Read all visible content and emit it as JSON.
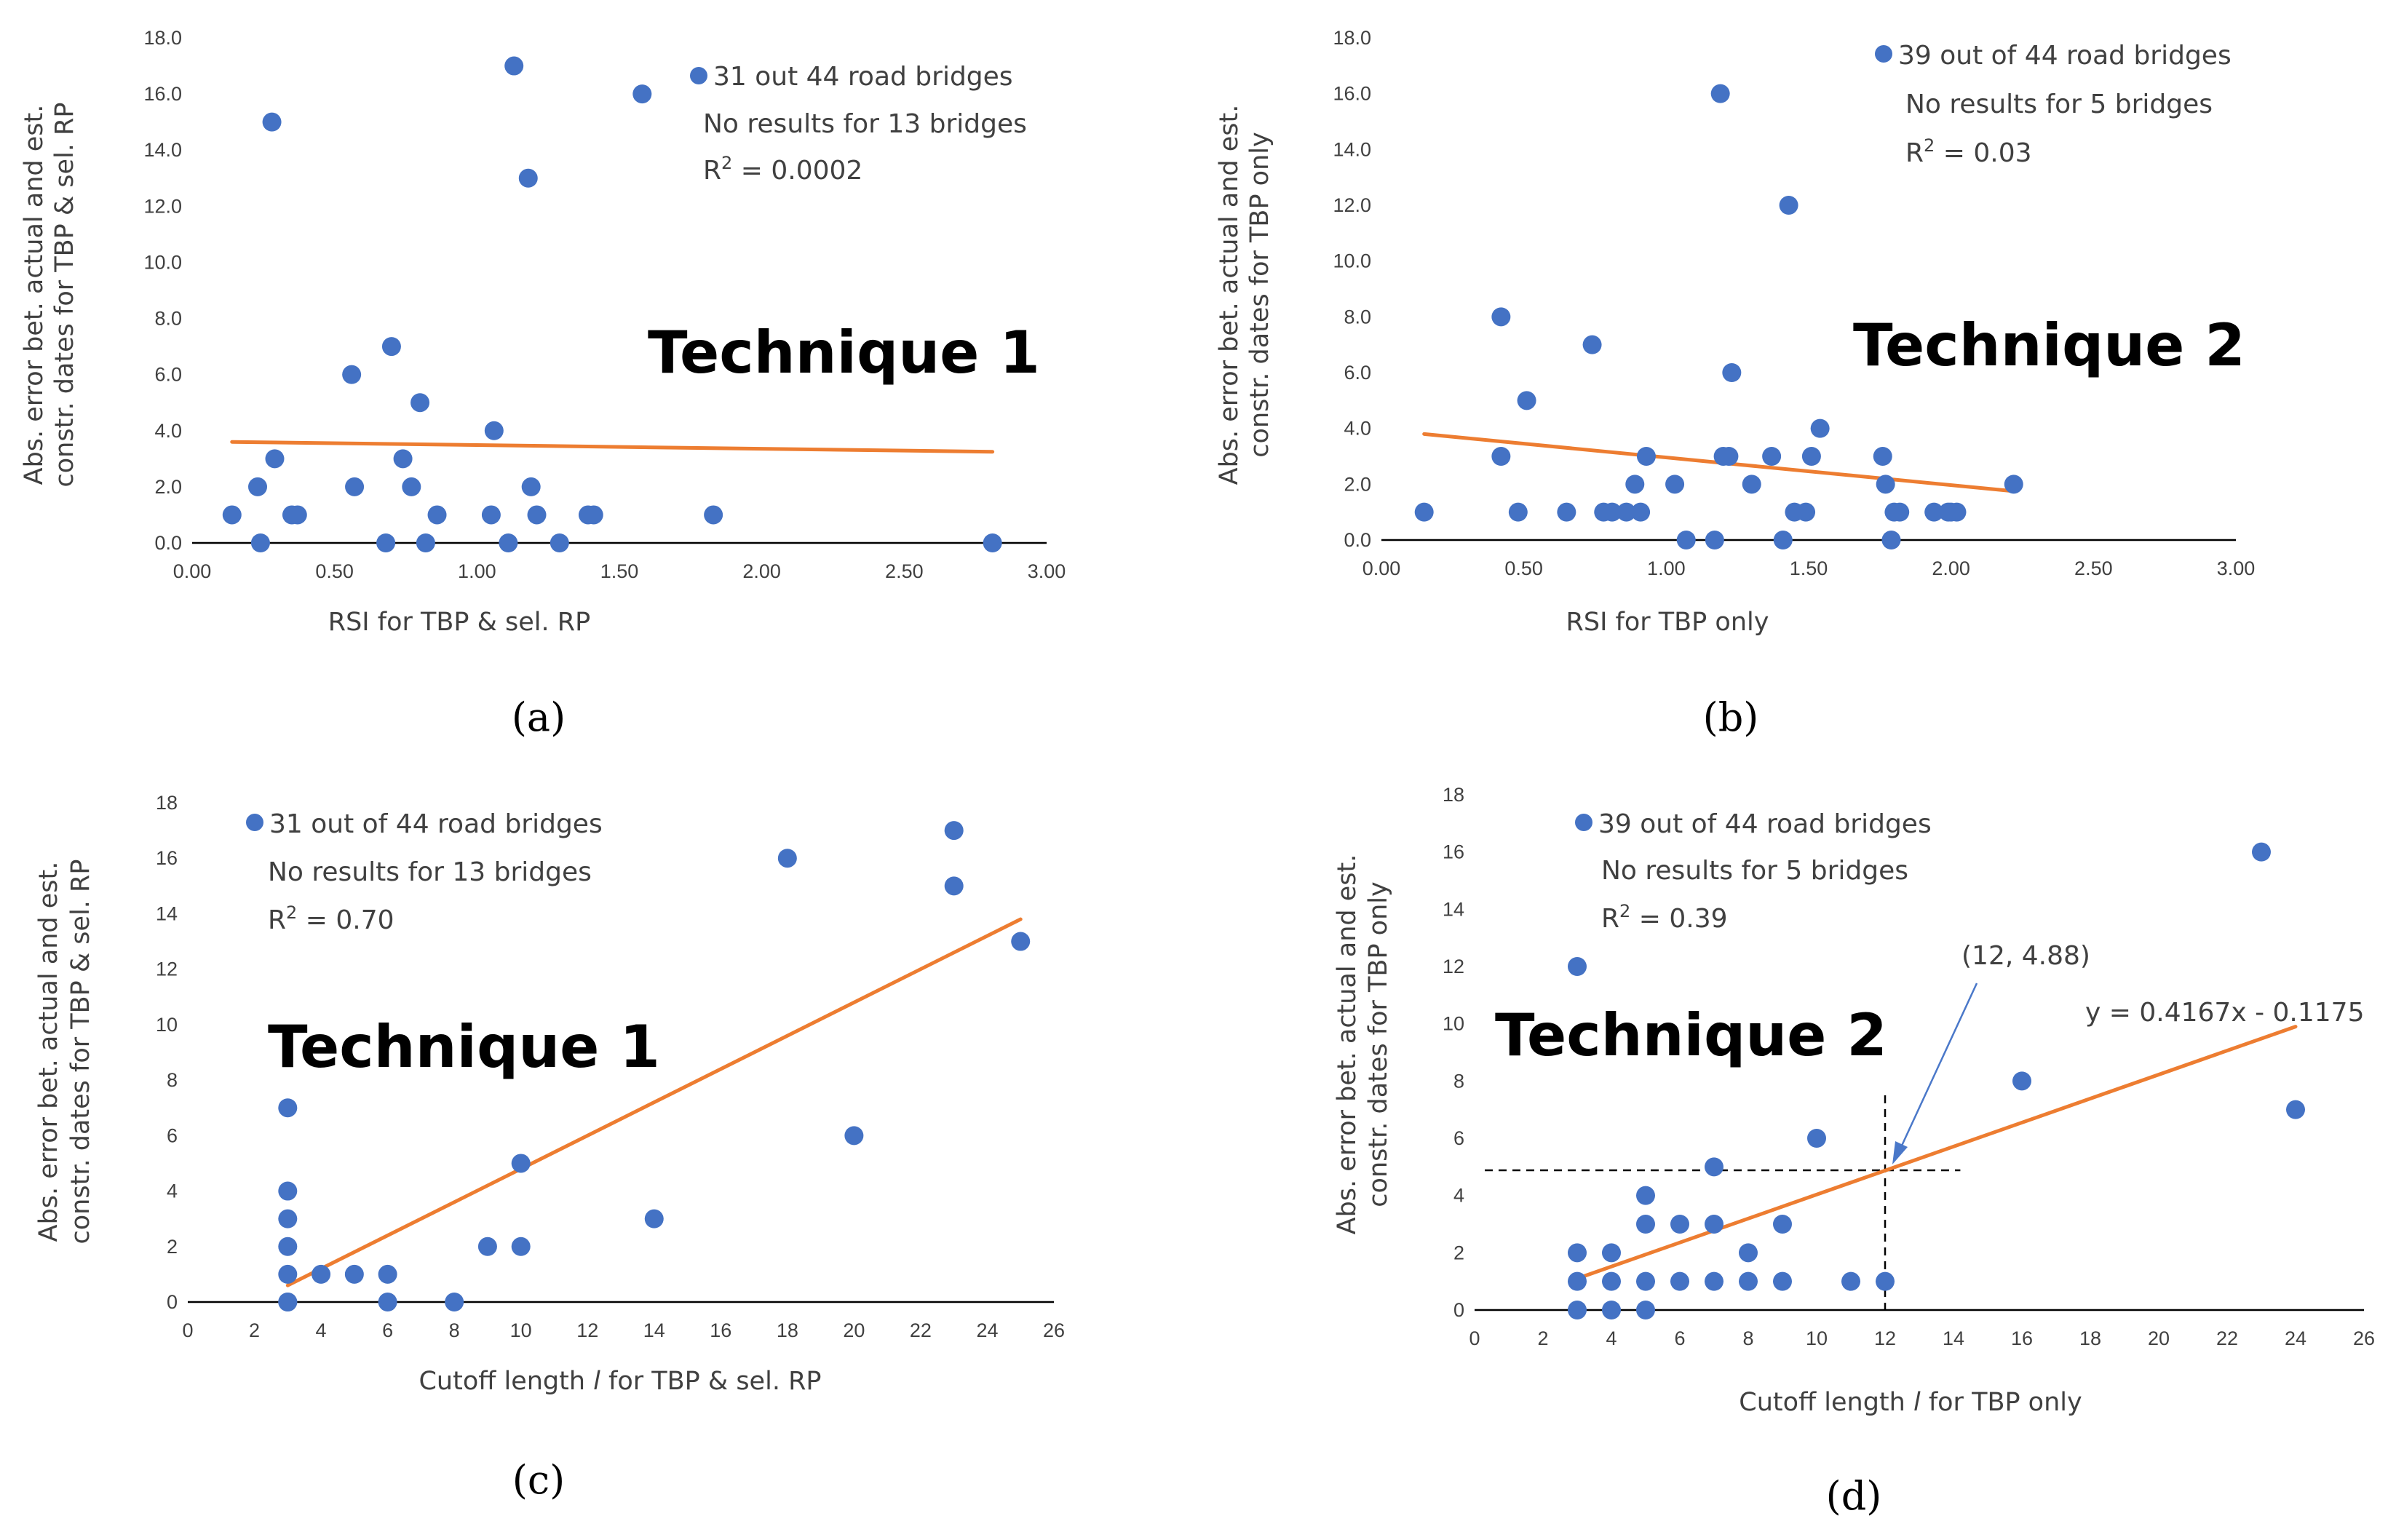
{
  "chart_data": [
    {
      "id": "a",
      "type": "scatter",
      "panel_label": "(a)",
      "technique_label": "Technique 1",
      "xlabel": "RSI for TBP & sel. RP",
      "ylabel_lines": [
        "Abs. error bet.  actual and est.",
        "constr. dates for TBP & sel. RP"
      ],
      "xlim": [
        0,
        3
      ],
      "ylim": [
        0,
        18
      ],
      "xticks": [
        "0.00",
        "0.50",
        "1.00",
        "1.50",
        "2.00",
        "2.50",
        "3.00"
      ],
      "yticks": [
        "0.0",
        "2.0",
        "4.0",
        "6.0",
        "8.0",
        "10.0",
        "12.0",
        "14.0",
        "16.0",
        "18.0"
      ],
      "legend": {
        "series": "31 out 44 road bridges",
        "note": "No results for 13 bridges",
        "r2_prefix": "R",
        "r2_sup": "2",
        "r2_value": " = 0.0002"
      },
      "series": [
        {
          "name": "31 out 44 road bridges",
          "x": [
            0.14,
            0.23,
            0.24,
            0.28,
            0.29,
            0.35,
            0.37,
            0.56,
            0.57,
            0.68,
            0.7,
            0.74,
            0.77,
            0.8,
            0.82,
            0.86,
            1.05,
            1.06,
            1.11,
            1.13,
            1.18,
            1.19,
            1.21,
            1.29,
            1.39,
            1.41,
            1.58,
            1.83,
            2.81
          ],
          "y": [
            1,
            2,
            0,
            15,
            3,
            1,
            1,
            6,
            2,
            0,
            7,
            3,
            2,
            5,
            0,
            1,
            1,
            4,
            0,
            17,
            13,
            2,
            1,
            0,
            1,
            1,
            16,
            1,
            0
          ]
        }
      ],
      "trendline": {
        "x": [
          0.14,
          2.81
        ],
        "y": [
          3.6,
          3.25
        ]
      }
    },
    {
      "id": "b",
      "type": "scatter",
      "panel_label": "(b)",
      "technique_label": "Technique 2",
      "xlabel": "RSI for TBP only",
      "ylabel_lines": [
        "Abs. error bet.  actual and est.",
        "constr. dates for TBP only"
      ],
      "xlim": [
        0,
        3
      ],
      "ylim": [
        0,
        18
      ],
      "xticks": [
        "0.00",
        "0.50",
        "1.00",
        "1.50",
        "2.00",
        "2.50",
        "3.00"
      ],
      "yticks": [
        "0.0",
        "2.0",
        "4.0",
        "6.0",
        "8.0",
        "10.0",
        "12.0",
        "14.0",
        "16.0",
        "18.0"
      ],
      "legend": {
        "series": "39 out of 44 road bridges",
        "note": "No results for 5 bridges",
        "r2_prefix": "R",
        "r2_sup": "2",
        "r2_value": " = 0.03"
      },
      "series": [
        {
          "name": "39 out of 44 road bridges",
          "x": [
            0.15,
            0.42,
            0.42,
            0.48,
            0.51,
            0.65,
            0.74,
            0.78,
            0.81,
            0.86,
            0.89,
            0.91,
            0.93,
            1.03,
            1.07,
            1.17,
            1.19,
            1.2,
            1.22,
            1.23,
            1.3,
            1.37,
            1.41,
            1.43,
            1.45,
            1.49,
            1.51,
            1.54,
            1.76,
            1.77,
            1.79,
            1.8,
            1.82,
            1.94,
            1.99,
            2.0,
            2.02,
            2.22
          ],
          "y": [
            1,
            8,
            3,
            1,
            5,
            1,
            7,
            1,
            1,
            1,
            2,
            1,
            3,
            2,
            0,
            0,
            16,
            3,
            3,
            6,
            2,
            3,
            0,
            12,
            1,
            1,
            3,
            4,
            3,
            2,
            0,
            1,
            1,
            1,
            1,
            1,
            1,
            2
          ]
        }
      ],
      "trendline": {
        "x": [
          0.15,
          2.22
        ],
        "y": [
          3.8,
          1.75
        ]
      }
    },
    {
      "id": "c",
      "type": "scatter",
      "panel_label": "(c)",
      "technique_label": "Technique 1",
      "xlabel_prefix": "Cutoff length ",
      "xlabel_var": "l",
      "xlabel_suffix": " for TBP & sel. RP",
      "ylabel_lines": [
        "Abs. error bet.  actual and est.",
        "constr. dates for TBP & sel. RP"
      ],
      "xlim": [
        0,
        26
      ],
      "ylim": [
        0,
        18
      ],
      "xticks": [
        "0",
        "2",
        "4",
        "6",
        "8",
        "10",
        "12",
        "14",
        "16",
        "18",
        "20",
        "22",
        "24",
        "26"
      ],
      "yticks": [
        "0",
        "2",
        "4",
        "6",
        "8",
        "10",
        "12",
        "14",
        "16",
        "18"
      ],
      "legend": {
        "series": "31 out of 44 road bridges",
        "note": "No results for 13 bridges",
        "r2_prefix": "R",
        "r2_sup": "2",
        "r2_value": " = 0.70"
      },
      "series": [
        {
          "name": "31 out of 44 road bridges",
          "x": [
            3,
            3,
            3,
            3,
            3,
            3,
            3,
            4,
            5,
            6,
            6,
            8,
            9,
            10,
            10,
            14,
            18,
            20,
            23,
            23,
            25
          ],
          "y": [
            7,
            4,
            3,
            2,
            1,
            0,
            0,
            1,
            1,
            1,
            0,
            0,
            2,
            5,
            2,
            3,
            16,
            6,
            17,
            15,
            13
          ],
          "r": [
            1,
            1,
            1,
            1,
            1,
            1,
            1,
            1,
            1,
            1,
            1,
            1,
            1,
            1,
            1,
            1,
            1,
            1,
            1,
            1,
            1
          ]
        }
      ],
      "trendline": {
        "x": [
          3,
          25
        ],
        "y": [
          0.6,
          13.8
        ]
      }
    },
    {
      "id": "d",
      "type": "scatter",
      "panel_label": "(d)",
      "technique_label": "Technique 2",
      "xlabel_prefix": "Cutoff length ",
      "xlabel_var": "l",
      "xlabel_suffix": " for TBP only",
      "ylabel_lines": [
        "Abs. error bet.  actual and est.",
        "constr. dates for TBP only"
      ],
      "xlim": [
        0,
        26
      ],
      "ylim": [
        0,
        18
      ],
      "xticks": [
        "0",
        "2",
        "4",
        "6",
        "8",
        "10",
        "12",
        "14",
        "16",
        "18",
        "20",
        "22",
        "24",
        "26"
      ],
      "yticks": [
        "0",
        "2",
        "4",
        "6",
        "8",
        "10",
        "12",
        "14",
        "16",
        "18"
      ],
      "legend": {
        "series": "39 out of 44 road bridges",
        "note": "No results for 5 bridges",
        "r2_prefix": "R",
        "r2_sup": "2",
        "r2_value": " = 0.39"
      },
      "series": [
        {
          "name": "39 out of 44 road bridges",
          "x": [
            3,
            3,
            3,
            3,
            4,
            4,
            4,
            5,
            5,
            5,
            5,
            6,
            6,
            7,
            7,
            7,
            8,
            8,
            9,
            9,
            10,
            11,
            12,
            16,
            23,
            24
          ],
          "y": [
            12,
            2,
            1,
            0,
            2,
            1,
            0,
            4,
            3,
            1,
            0,
            3,
            1,
            5,
            3,
            1,
            2,
            1,
            3,
            1,
            6,
            1,
            1,
            8,
            16,
            7
          ]
        }
      ],
      "trendline": {
        "x": [
          3,
          24
        ],
        "y": [
          1.1,
          9.9
        ]
      },
      "equation": "y = 0.4167x - 0.1175",
      "annotation": {
        "text": "(12, 4.88)",
        "x": 12,
        "y": 4.88,
        "hline_to_x": 14.2,
        "vline_to_y": 7.5
      }
    }
  ]
}
